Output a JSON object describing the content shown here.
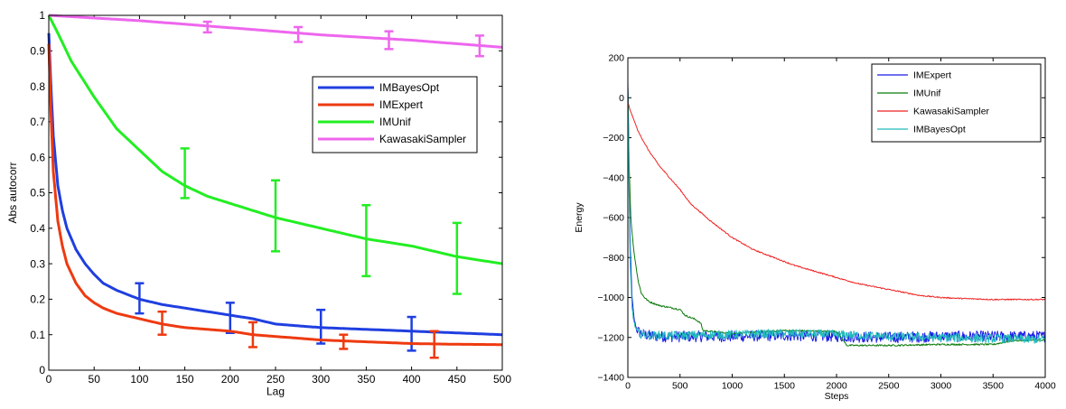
{
  "chart_data": [
    {
      "type": "line",
      "xlabel": "Lag",
      "ylabel": "Abs autocorr",
      "xlim": [
        0,
        500
      ],
      "ylim": [
        0,
        1
      ],
      "xticks": [
        0,
        50,
        100,
        150,
        200,
        250,
        300,
        350,
        400,
        450,
        500
      ],
      "yticks": [
        0,
        0.1,
        0.2,
        0.3,
        0.4,
        0.5,
        0.6,
        0.7,
        0.8,
        0.9,
        1
      ],
      "xtick_labels": [
        "0",
        "50",
        "100",
        "150",
        "200",
        "250",
        "300",
        "350",
        "400",
        "450",
        "500"
      ],
      "ytick_labels": [
        "0",
        "0.1",
        "0.2",
        "0.3",
        "0.4",
        "0.5",
        "0.6",
        "0.7",
        "0.8",
        "0.9",
        "1"
      ],
      "grid": false,
      "legend_position": "upper-right",
      "series": [
        {
          "name": "IMBayesOpt",
          "color": "#1f3fe0",
          "x": [
            0,
            2,
            5,
            10,
            15,
            20,
            30,
            40,
            50,
            60,
            75,
            100,
            125,
            150,
            175,
            200,
            225,
            250,
            275,
            300,
            350,
            400,
            450,
            500
          ],
          "y": [
            0.95,
            0.82,
            0.66,
            0.52,
            0.45,
            0.4,
            0.34,
            0.3,
            0.27,
            0.245,
            0.225,
            0.2,
            0.185,
            0.175,
            0.165,
            0.155,
            0.145,
            0.13,
            0.125,
            0.12,
            0.115,
            0.11,
            0.105,
            0.1
          ],
          "error_bars": [
            {
              "x": 100,
              "y": 0.205,
              "lo": 0.16,
              "hi": 0.245
            },
            {
              "x": 200,
              "y": 0.145,
              "lo": 0.105,
              "hi": 0.19
            },
            {
              "x": 300,
              "y": 0.12,
              "lo": 0.075,
              "hi": 0.17
            },
            {
              "x": 400,
              "y": 0.1,
              "lo": 0.055,
              "hi": 0.15
            }
          ]
        },
        {
          "name": "IMExpert",
          "color": "#ee3a10",
          "x": [
            0,
            2,
            5,
            10,
            15,
            20,
            30,
            40,
            50,
            60,
            75,
            100,
            125,
            150,
            175,
            200,
            225,
            250,
            275,
            300,
            350,
            400,
            450,
            500
          ],
          "y": [
            0.92,
            0.75,
            0.56,
            0.42,
            0.35,
            0.3,
            0.245,
            0.21,
            0.19,
            0.175,
            0.16,
            0.145,
            0.13,
            0.12,
            0.115,
            0.11,
            0.1,
            0.095,
            0.09,
            0.085,
            0.08,
            0.075,
            0.073,
            0.072
          ],
          "error_bars": [
            {
              "x": 125,
              "y": 0.13,
              "lo": 0.1,
              "hi": 0.165
            },
            {
              "x": 225,
              "y": 0.1,
              "lo": 0.065,
              "hi": 0.135
            },
            {
              "x": 325,
              "y": 0.08,
              "lo": 0.06,
              "hi": 0.1
            },
            {
              "x": 425,
              "y": 0.075,
              "lo": 0.035,
              "hi": 0.11
            }
          ]
        },
        {
          "name": "IMUnif",
          "color": "#22ee22",
          "x": [
            0,
            5,
            10,
            25,
            50,
            75,
            100,
            125,
            150,
            175,
            200,
            250,
            300,
            350,
            400,
            450,
            500
          ],
          "y": [
            1.0,
            0.975,
            0.95,
            0.87,
            0.77,
            0.68,
            0.62,
            0.56,
            0.52,
            0.49,
            0.47,
            0.43,
            0.4,
            0.37,
            0.35,
            0.32,
            0.3
          ],
          "error_bars": [
            {
              "x": 150,
              "y": 0.55,
              "lo": 0.485,
              "hi": 0.625
            },
            {
              "x": 250,
              "y": 0.44,
              "lo": 0.335,
              "hi": 0.535
            },
            {
              "x": 350,
              "y": 0.365,
              "lo": 0.265,
              "hi": 0.465
            },
            {
              "x": 450,
              "y": 0.315,
              "lo": 0.215,
              "hi": 0.415
            }
          ]
        },
        {
          "name": "KawasakiSampler",
          "color": "#ee66ee",
          "x": [
            0,
            100,
            200,
            300,
            400,
            500
          ],
          "y": [
            1.0,
            0.985,
            0.965,
            0.945,
            0.93,
            0.91
          ],
          "error_bars": [
            {
              "x": 175,
              "y": 0.967,
              "lo": 0.952,
              "hi": 0.982
            },
            {
              "x": 275,
              "y": 0.947,
              "lo": 0.925,
              "hi": 0.967
            },
            {
              "x": 375,
              "y": 0.93,
              "lo": 0.905,
              "hi": 0.955
            },
            {
              "x": 475,
              "y": 0.915,
              "lo": 0.885,
              "hi": 0.943
            }
          ]
        }
      ],
      "legend_order": [
        "IMBayesOpt",
        "IMExpert",
        "IMUnif",
        "KawasakiSampler"
      ]
    },
    {
      "type": "line",
      "xlabel": "Steps",
      "ylabel": "Energy",
      "xlim": [
        0,
        4000
      ],
      "ylim": [
        -1400,
        200
      ],
      "xticks": [
        0,
        500,
        1000,
        1500,
        2000,
        2500,
        3000,
        3500,
        4000
      ],
      "yticks": [
        -1400,
        -1200,
        -1000,
        -800,
        -600,
        -400,
        -200,
        0,
        200
      ],
      "xtick_labels": [
        "0",
        "500",
        "1000",
        "1500",
        "2000",
        "2500",
        "3000",
        "3500",
        "4000"
      ],
      "ytick_labels": [
        "−1400",
        "−1200",
        "−1000",
        "−800",
        "−600",
        "−400",
        "−200",
        "0",
        "200"
      ],
      "grid": false,
      "legend_position": "upper-right",
      "series": [
        {
          "name": "IMExpert",
          "color": "#1a1ae6",
          "x": [
            0,
            10,
            20,
            40,
            60,
            80,
            100,
            150,
            200,
            300,
            500,
            1000,
            1500,
            2000,
            2500,
            3000,
            3500,
            4000
          ],
          "y": [
            80,
            -300,
            -700,
            -1000,
            -1110,
            -1150,
            -1170,
            -1185,
            -1190,
            -1195,
            -1195,
            -1195,
            -1190,
            -1195,
            -1200,
            -1195,
            -1195,
            -1195
          ],
          "noise": 28
        },
        {
          "name": "IMUnif",
          "color": "#0a7a0a",
          "x": [
            0,
            10,
            30,
            60,
            100,
            130,
            160,
            200,
            300,
            400,
            500,
            550,
            650,
            700,
            720,
            800,
            1000,
            1500,
            2000,
            2100,
            2500,
            3000,
            3500,
            3700,
            4000
          ],
          "y": [
            60,
            -300,
            -620,
            -780,
            -920,
            -980,
            -1000,
            -1020,
            -1040,
            -1050,
            -1060,
            -1090,
            -1110,
            -1130,
            -1165,
            -1170,
            -1180,
            -1165,
            -1170,
            -1240,
            -1240,
            -1235,
            -1235,
            -1215,
            -1215
          ],
          "noise": 4
        },
        {
          "name": "KawasakiSampler",
          "color": "#ee2222",
          "x": [
            0,
            20,
            50,
            100,
            200,
            300,
            400,
            500,
            600,
            700,
            800,
            900,
            1000,
            1200,
            1400,
            1600,
            1800,
            2000,
            2200,
            2500,
            2800,
            3000,
            3200,
            3500,
            3800,
            4000
          ],
          "y": [
            -20,
            -60,
            -100,
            -170,
            -265,
            -340,
            -400,
            -460,
            -530,
            -575,
            -620,
            -660,
            -700,
            -760,
            -800,
            -840,
            -870,
            -900,
            -930,
            -960,
            -990,
            -1000,
            -1005,
            -1010,
            -1010,
            -1010
          ],
          "noise": 3
        },
        {
          "name": "IMBayesOpt",
          "color": "#22bbbb",
          "x": [
            0,
            10,
            20,
            40,
            60,
            80,
            100,
            200,
            500,
            1000,
            1500,
            2000,
            2500,
            3000,
            3500,
            4000
          ],
          "y": [
            40,
            -400,
            -800,
            -1050,
            -1130,
            -1160,
            -1180,
            -1190,
            -1190,
            -1185,
            -1180,
            -1185,
            -1195,
            -1200,
            -1205,
            -1210
          ],
          "noise": 22
        }
      ],
      "legend_order": [
        "IMExpert",
        "IMUnif",
        "KawasakiSampler",
        "IMBayesOpt"
      ]
    }
  ]
}
